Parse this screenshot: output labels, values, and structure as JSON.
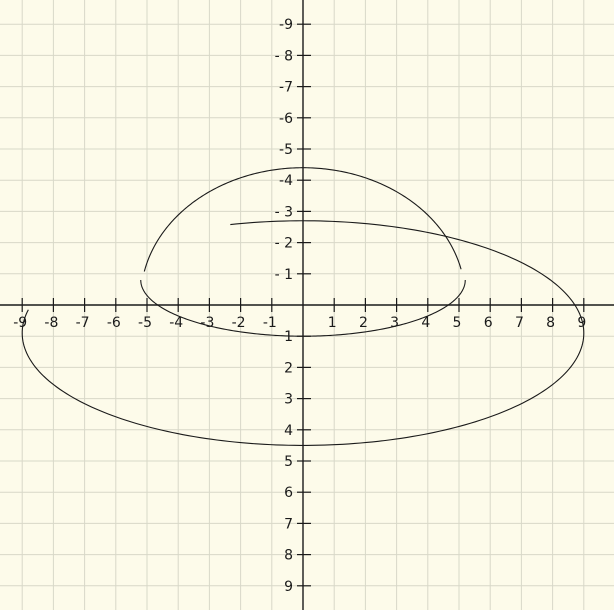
{
  "background_color": "#fdfbea",
  "grid_color": "#d8d8c8",
  "ink_color": "#1a1a1a",
  "chart_data": {
    "type": "diagram",
    "grid": true,
    "xlim": [
      -9.5,
      9.5
    ],
    "ylim": [
      -9.5,
      9.5
    ],
    "x_ticks": [
      {
        "value": -9,
        "label": "-9"
      },
      {
        "value": -8,
        "label": "-8"
      },
      {
        "value": -7,
        "label": "-7"
      },
      {
        "value": -6,
        "label": "-6"
      },
      {
        "value": -5,
        "label": "-5"
      },
      {
        "value": -4,
        "label": "-4"
      },
      {
        "value": -3,
        "label": "-3"
      },
      {
        "value": -2,
        "label": "-2"
      },
      {
        "value": -1,
        "label": "-1"
      },
      {
        "value": 1,
        "label": "1"
      },
      {
        "value": 2,
        "label": "2"
      },
      {
        "value": 3,
        "label": "3"
      },
      {
        "value": 4,
        "label": "4"
      },
      {
        "value": 5,
        "label": "5"
      },
      {
        "value": 6,
        "label": "6"
      },
      {
        "value": 7,
        "label": "7"
      },
      {
        "value": 8,
        "label": "8"
      },
      {
        "value": 9,
        "label": "9"
      }
    ],
    "y_ticks": [
      {
        "value": 9,
        "label": "-9"
      },
      {
        "value": 8,
        "label": "- 8"
      },
      {
        "value": 7,
        "label": "-7"
      },
      {
        "value": 6,
        "label": "-6"
      },
      {
        "value": 5,
        "label": "-5"
      },
      {
        "value": 4,
        "label": "-4"
      },
      {
        "value": 3,
        "label": "- 3"
      },
      {
        "value": 2,
        "label": "- 2"
      },
      {
        "value": 1,
        "label": "- 1"
      },
      {
        "value": -1,
        "label": "1"
      },
      {
        "value": -2,
        "label": "2"
      },
      {
        "value": -3,
        "label": "3"
      },
      {
        "value": -4,
        "label": "4"
      },
      {
        "value": -5,
        "label": "5"
      },
      {
        "value": -6,
        "label": "6"
      },
      {
        "value": -7,
        "label": "7"
      },
      {
        "value": -8,
        "label": "8"
      },
      {
        "value": -9,
        "label": "9"
      }
    ],
    "curves": [
      {
        "kind": "elliptic-arc",
        "center": [
          0,
          -0.9
        ],
        "rx": 9.0,
        "ry": 3.6,
        "from_deg": 168,
        "to_deg": 465
      },
      {
        "kind": "elliptic-arc",
        "center": [
          0,
          0.2
        ],
        "rx": 5.2,
        "ry": 4.2,
        "from_deg": 13,
        "to_deg": 168
      },
      {
        "kind": "elliptic-arc",
        "center": [
          0,
          0.8
        ],
        "rx": 5.2,
        "ry": 1.8,
        "from_deg": 180,
        "to_deg": 360
      }
    ]
  }
}
